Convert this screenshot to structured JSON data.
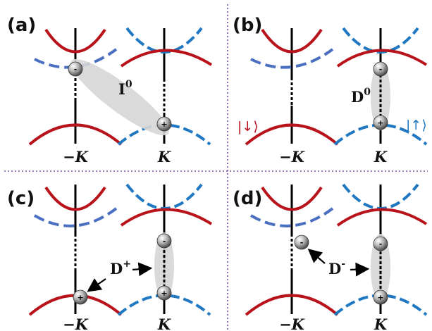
{
  "colors": {
    "red_band": "#b8121b",
    "blue_band_left": "#4a6fc1",
    "blue_band_right": "#1f78c1",
    "divider": "#7b4f9e",
    "axis": "#000000",
    "exciton_ellipse": "#d6d6d6"
  },
  "panels": [
    {
      "id": "a",
      "label": "(a)",
      "valley_labels": [
        "−K",
        "K"
      ],
      "exciton": {
        "base": "I",
        "sup": "0",
        "type": "interlayer-neutral"
      }
    },
    {
      "id": "b",
      "label": "(b)",
      "valley_labels": [
        "−K",
        "K"
      ],
      "exciton": {
        "base": "D",
        "sup": "0",
        "type": "intralayer-neutral"
      },
      "spin_labels": {
        "down": "|↓⟩",
        "up": "|↑⟩"
      }
    },
    {
      "id": "c",
      "label": "(c)",
      "valley_labels": [
        "−K",
        "K"
      ],
      "exciton": {
        "base": "D",
        "sup": "+",
        "type": "positive-trion"
      }
    },
    {
      "id": "d",
      "label": "(d)",
      "valley_labels": [
        "−K",
        "K"
      ],
      "exciton": {
        "base": "D",
        "sup": "-",
        "type": "negative-trion"
      }
    }
  ],
  "particles": {
    "electron": "-",
    "hole": "+"
  }
}
